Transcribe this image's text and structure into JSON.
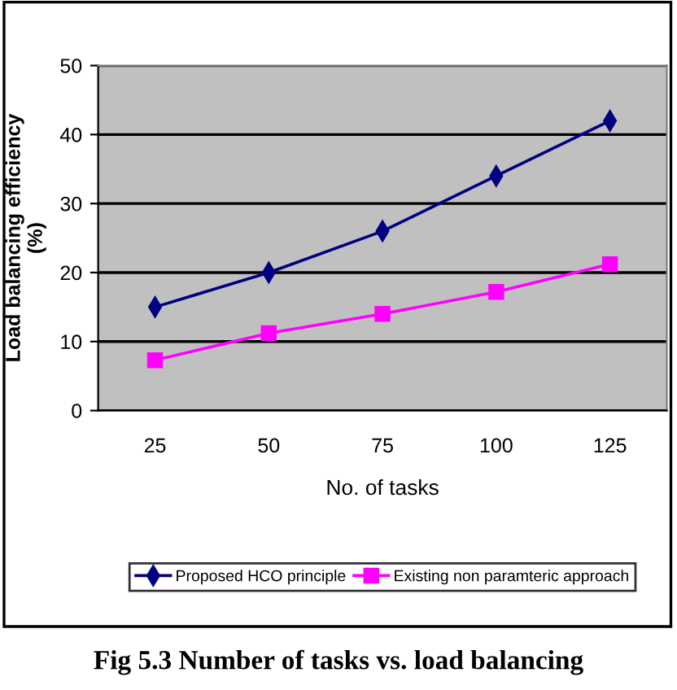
{
  "chart_data": {
    "type": "line",
    "xlabel": "No. of tasks",
    "ylabel": "Load balancing efficiency\n(%)",
    "categories": [
      "25",
      "50",
      "75",
      "100",
      "125"
    ],
    "series": [
      {
        "name": "Proposed HCO principle",
        "color": "#000080",
        "marker": "diamond",
        "values": [
          15,
          20,
          26,
          34,
          42
        ]
      },
      {
        "name": "Existing non paramteric approach",
        "color": "#ff00ff",
        "marker": "square",
        "values": [
          7.3,
          11.2,
          14,
          17.2,
          21.2
        ]
      }
    ],
    "ylim": [
      0,
      50
    ],
    "yticks": [
      0,
      10,
      20,
      30,
      40,
      50
    ],
    "grid": "y",
    "legend": "bottom",
    "line_style": "solid",
    "annotations": [
      "Fig 5.3 Number of tasks vs. load balancing"
    ]
  }
}
